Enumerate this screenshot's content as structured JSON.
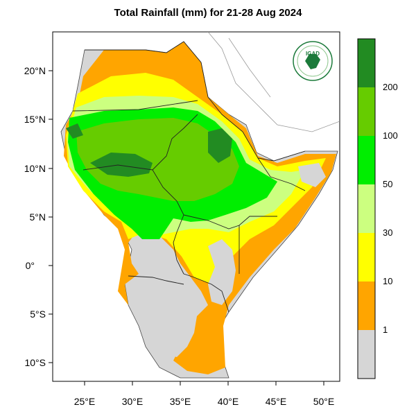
{
  "title": "Total Rainfall (mm) for 21-28 Aug 2024",
  "logo": {
    "text": "IGAD",
    "color": "#1b7a3a"
  },
  "axes": {
    "lat_ticks": [
      "20°N",
      "15°N",
      "10°N",
      "5°N",
      "0°",
      "5°S",
      "10°S"
    ],
    "lon_ticks": [
      "25°E",
      "30°E",
      "35°E",
      "40°E",
      "45°E",
      "50°E"
    ]
  },
  "legend": {
    "colors": [
      "#d6d6d6",
      "#ffa500",
      "#ffff00",
      "#ccff80",
      "#00ee00",
      "#66cc00",
      "#228b22"
    ],
    "labels": [
      "1",
      "10",
      "30",
      "50",
      "100",
      "200"
    ]
  }
}
